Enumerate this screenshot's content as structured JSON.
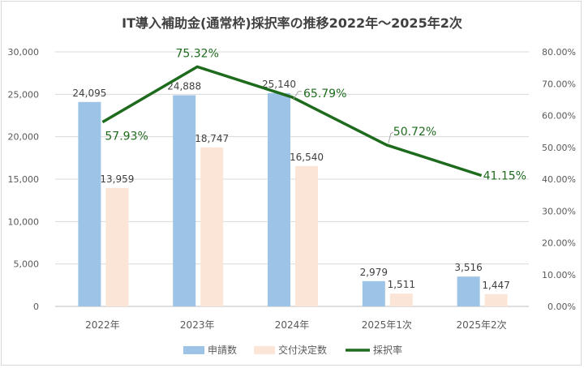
{
  "chart_data": {
    "type": "bar",
    "title": "IT導入補助金(通常枠)採択率の推移2022年～2025年2次",
    "categories": [
      "2022年",
      "2023年",
      "2024年",
      "2025年1次",
      "2025年2次"
    ],
    "series": [
      {
        "name": "申請数",
        "kind": "bar",
        "axis": "left",
        "color": "#9dc3e6",
        "values": [
          24095,
          24888,
          25140,
          2979,
          3516
        ],
        "labels": [
          "24,095",
          "24,888",
          "25,140",
          "2,979",
          "3,516"
        ]
      },
      {
        "name": "交付決定数",
        "kind": "bar",
        "axis": "left",
        "color": "#fbe5d6",
        "values": [
          13959,
          18747,
          16540,
          1511,
          1447
        ],
        "labels": [
          "13,959",
          "18,747",
          "16,540",
          "1,511",
          "1,447"
        ]
      },
      {
        "name": "採択率",
        "kind": "line",
        "axis": "right",
        "color": "#1e6b1e",
        "values": [
          57.93,
          75.32,
          65.79,
          50.72,
          41.15
        ],
        "labels": [
          "57.93%",
          "75.32%",
          "65.79%",
          "50.72%",
          "41.15%"
        ]
      }
    ],
    "ylim_left": [
      0,
      30000
    ],
    "yticks_left": [
      "0",
      "5,000",
      "10,000",
      "15,000",
      "20,000",
      "25,000",
      "30,000"
    ],
    "ylim_right": [
      0,
      80
    ],
    "yticks_right": [
      "0.00%",
      "10.00%",
      "20.00%",
      "30.00%",
      "40.00%",
      "50.00%",
      "60.00%",
      "70.00%",
      "80.00%"
    ],
    "grid": true,
    "legend": "bottom"
  }
}
